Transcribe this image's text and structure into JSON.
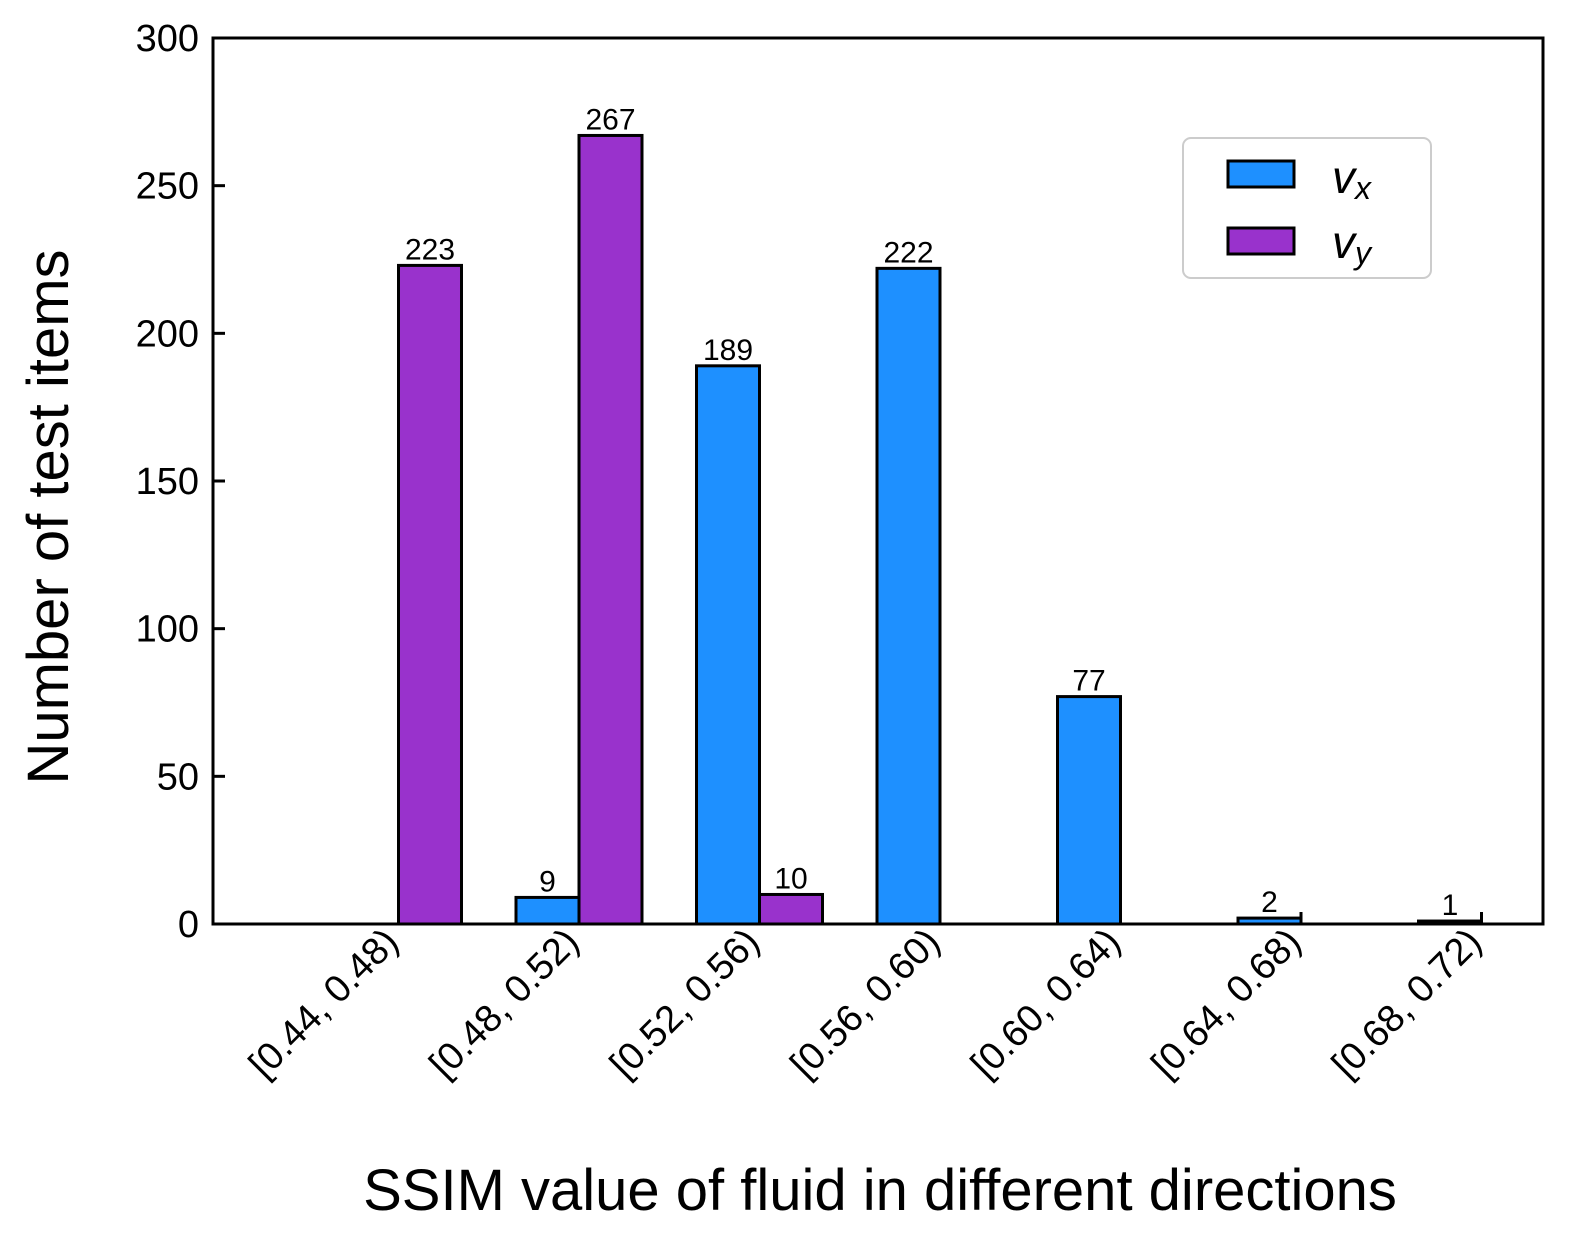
{
  "chart_data": {
    "type": "bar",
    "categories": [
      "[0.44, 0.48)",
      "[0.48, 0.52)",
      "[0.52, 0.56)",
      "[0.56, 0.60)",
      "[0.60, 0.64)",
      "[0.64, 0.68)",
      "[0.68, 0.72)"
    ],
    "series": [
      {
        "name": "vx",
        "main": "v",
        "sub": "x",
        "color": "#1E90FF",
        "values": [
          0,
          9,
          189,
          222,
          77,
          2,
          1
        ]
      },
      {
        "name": "vy",
        "main": "v",
        "sub": "y",
        "color": "#9932CC",
        "values": [
          223,
          267,
          10,
          0,
          0,
          0,
          0
        ]
      }
    ],
    "data_labels": {
      "vx": [
        "",
        "9",
        "189",
        "222",
        "77",
        "2",
        "1"
      ],
      "vy": [
        "223",
        "267",
        "10",
        "",
        "",
        "",
        ""
      ]
    },
    "title": "",
    "xlabel": "SSIM value of fluid in different directions",
    "ylabel": "Number of test items",
    "ylim": [
      0,
      300
    ],
    "yticks": [
      "0",
      "50",
      "100",
      "150",
      "200",
      "250",
      "300"
    ],
    "legend_position": "top-right",
    "grid": false
  }
}
